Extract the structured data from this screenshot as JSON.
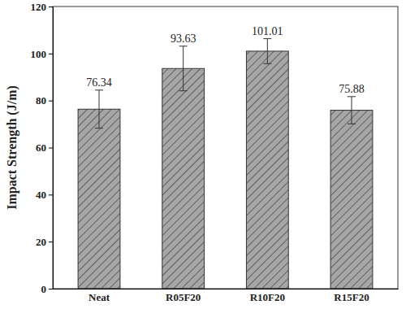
{
  "chart_data": {
    "type": "bar",
    "y_label": "Impact Strength (J/m)",
    "categories": [
      "Neat",
      "R05F20",
      "R10F20",
      "R15F20"
    ],
    "values": [
      76.34,
      93.63,
      101.01,
      75.88
    ],
    "errors": [
      8.1,
      9.5,
      5.3,
      5.8
    ],
    "color": "#a6a6a6",
    "ylim": [
      0,
      120
    ],
    "yticks": [
      0,
      20,
      40,
      60,
      80,
      100,
      120
    ],
    "data_labels": true,
    "grid": false
  }
}
